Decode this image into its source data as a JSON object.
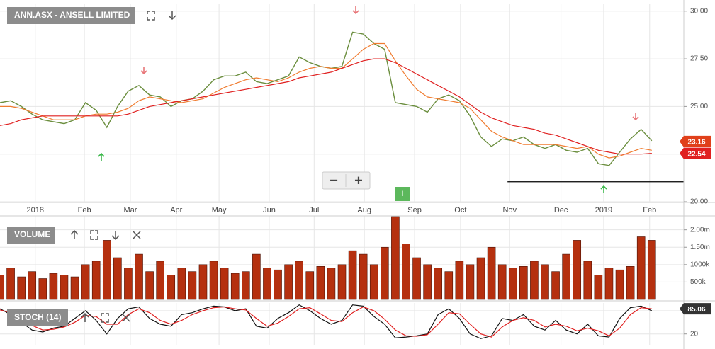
{
  "chart_data": [
    {
      "type": "line",
      "title": "ANN.ASX - ANSELL LIMITED",
      "x": [
        0,
        1,
        2,
        3,
        4,
        5,
        6,
        7,
        8,
        9,
        10,
        11,
        12,
        13,
        14,
        15,
        16,
        17,
        18,
        19,
        20,
        21,
        22,
        23,
        24,
        25,
        26,
        27,
        28,
        29,
        30,
        31,
        32,
        33,
        34,
        35,
        36,
        37,
        38,
        39,
        40,
        41,
        42,
        43,
        44,
        45,
        46,
        47,
        48,
        49,
        50,
        51,
        52,
        53,
        54,
        55,
        56,
        57,
        58,
        59,
        60,
        61
      ],
      "series": [
        {
          "color": "#6b8e3e",
          "values": [
            25.2,
            25.3,
            25.0,
            24.6,
            24.3,
            24.2,
            24.1,
            24.3,
            25.2,
            24.8,
            23.9,
            25.0,
            25.8,
            26.1,
            25.6,
            25.5,
            25.0,
            25.3,
            25.4,
            25.8,
            26.4,
            26.6,
            26.6,
            26.8,
            26.3,
            26.2,
            26.4,
            26.6,
            27.6,
            27.3,
            27.1,
            27.0,
            27.1,
            28.9,
            28.8,
            28.3,
            28.0,
            25.2,
            25.1,
            25.0,
            24.7,
            25.4,
            25.6,
            25.3,
            24.5,
            23.4,
            22.9,
            23.3,
            23.2,
            23.4,
            23.0,
            22.8,
            23.0,
            22.7,
            22.6,
            22.8,
            22.0,
            21.9,
            22.6,
            23.3,
            23.8,
            23.2
          ]
        },
        {
          "color": "#f07c30",
          "values": [
            25.0,
            25.0,
            24.9,
            24.7,
            24.5,
            24.3,
            24.3,
            24.3,
            24.5,
            24.6,
            24.6,
            24.7,
            24.9,
            25.3,
            25.5,
            25.4,
            25.3,
            25.2,
            25.3,
            25.4,
            25.7,
            26.0,
            26.2,
            26.4,
            26.5,
            26.4,
            26.3,
            26.5,
            26.8,
            27.0,
            27.1,
            27.0,
            27.0,
            27.5,
            28.0,
            28.3,
            28.3,
            27.4,
            26.6,
            25.9,
            25.5,
            25.4,
            25.3,
            25.2,
            24.9,
            24.3,
            23.7,
            23.4,
            23.2,
            23.0,
            23.0,
            23.0,
            23.0,
            22.9,
            22.8,
            22.9,
            22.5,
            22.3,
            22.4,
            22.6,
            22.8,
            22.7
          ]
        },
        {
          "color": "#e02020",
          "values": [
            24.0,
            24.1,
            24.3,
            24.4,
            24.5,
            24.5,
            24.5,
            24.5,
            24.5,
            24.5,
            24.5,
            24.5,
            24.6,
            24.8,
            25.0,
            25.1,
            25.2,
            25.3,
            25.4,
            25.5,
            25.6,
            25.7,
            25.8,
            25.9,
            26.0,
            26.1,
            26.2,
            26.3,
            26.5,
            26.6,
            26.7,
            26.8,
            27.0,
            27.2,
            27.4,
            27.5,
            27.5,
            27.3,
            27.0,
            26.7,
            26.4,
            26.1,
            25.8,
            25.5,
            25.1,
            24.7,
            24.4,
            24.2,
            24.0,
            23.9,
            23.8,
            23.6,
            23.5,
            23.3,
            23.1,
            22.9,
            22.7,
            22.6,
            22.5,
            22.5,
            22.5,
            22.54
          ]
        }
      ],
      "xlim": [
        0,
        64
      ],
      "xticks": [
        {
          "value": 3.3,
          "label": "2018"
        },
        {
          "value": 7.9,
          "label": "Feb"
        },
        {
          "value": 12.2,
          "label": "Mar"
        },
        {
          "value": 16.5,
          "label": "Apr"
        },
        {
          "value": 20.5,
          "label": "May"
        },
        {
          "value": 25.2,
          "label": "Jun"
        },
        {
          "value": 29.4,
          "label": "Jul"
        },
        {
          "value": 34.1,
          "label": "Aug"
        },
        {
          "value": 38.8,
          "label": "Sep"
        },
        {
          "value": 43.1,
          "label": "Oct"
        },
        {
          "value": 47.7,
          "label": "Nov"
        },
        {
          "value": 52.5,
          "label": "Dec"
        },
        {
          "value": 56.5,
          "label": "2019"
        },
        {
          "value": 60.8,
          "label": "Feb"
        }
      ],
      "ylim": [
        20,
        30.4
      ],
      "yticks": [
        {
          "value": 20,
          "label": "20.00"
        },
        {
          "value": 22.5,
          "label": "22.50"
        },
        {
          "value": 25,
          "label": "25.00"
        },
        {
          "value": 27.5,
          "label": "27.50"
        },
        {
          "value": 30,
          "label": "30.00"
        }
      ],
      "grid": true,
      "tags": [
        {
          "value": 22.54,
          "color": "#e02020"
        },
        {
          "value": 23.16,
          "color": "#e0401a"
        }
      ],
      "tag_labels": [
        "22.54",
        "23.16"
      ],
      "support_line": {
        "y": 21.05,
        "x": [
          47.5,
          64
        ]
      }
    },
    {
      "type": "bar",
      "title": "VOLUME",
      "color": "#b5300f",
      "x": [
        0,
        1,
        2,
        3,
        4,
        5,
        6,
        7,
        8,
        9,
        10,
        11,
        12,
        13,
        14,
        15,
        16,
        17,
        18,
        19,
        20,
        21,
        22,
        23,
        24,
        25,
        26,
        27,
        28,
        29,
        30,
        31,
        32,
        33,
        34,
        35,
        36,
        37,
        38,
        39,
        40,
        41,
        42,
        43,
        44,
        45,
        46,
        47,
        48,
        49,
        50,
        51,
        52,
        53,
        54,
        55,
        56,
        57,
        58,
        59,
        60,
        61
      ],
      "values": [
        700000,
        900000,
        650000,
        800000,
        600000,
        750000,
        700000,
        650000,
        1000000,
        1100000,
        1700000,
        1200000,
        900000,
        1300000,
        800000,
        1100000,
        700000,
        900000,
        800000,
        1000000,
        1100000,
        900000,
        750000,
        800000,
        1300000,
        900000,
        850000,
        1000000,
        1100000,
        800000,
        950000,
        900000,
        1000000,
        1400000,
        1300000,
        1000000,
        1500000,
        2380000,
        1600000,
        1200000,
        1000000,
        900000,
        800000,
        1100000,
        1000000,
        1200000,
        1500000,
        1000000,
        900000,
        950000,
        1100000,
        1000000,
        800000,
        1300000,
        1700000,
        1100000,
        700000,
        900000,
        850000,
        950000,
        1800000,
        1700000
      ],
      "xlim": [
        0,
        64
      ],
      "ylim": [
        0,
        2400000
      ],
      "yticks": [
        {
          "value": 500000,
          "label": "500k"
        },
        {
          "value": 1000000,
          "label": "1000k"
        },
        {
          "value": 1500000,
          "label": "1.50m"
        },
        {
          "value": 2000000,
          "label": "2.00m"
        }
      ]
    },
    {
      "type": "line",
      "title": "STOCH (14)",
      "x": [
        0,
        1,
        2,
        3,
        4,
        5,
        6,
        7,
        8,
        9,
        10,
        11,
        12,
        13,
        14,
        15,
        16,
        17,
        18,
        19,
        20,
        21,
        22,
        23,
        24,
        25,
        26,
        27,
        28,
        29,
        30,
        31,
        32,
        33,
        34,
        35,
        36,
        37,
        38,
        39,
        40,
        41,
        42,
        43,
        44,
        45,
        46,
        47,
        48,
        49,
        50,
        51,
        52,
        53,
        54,
        55,
        56,
        57,
        58,
        59,
        60,
        61
      ],
      "series": [
        {
          "color": "#111111",
          "values": [
            85,
            70,
            50,
            30,
            25,
            35,
            40,
            60,
            80,
            55,
            20,
            60,
            85,
            90,
            60,
            45,
            40,
            70,
            75,
            85,
            92,
            90,
            80,
            85,
            40,
            35,
            60,
            75,
            95,
            80,
            60,
            45,
            55,
            95,
            92,
            65,
            45,
            10,
            12,
            15,
            20,
            70,
            85,
            60,
            20,
            8,
            15,
            60,
            55,
            70,
            40,
            30,
            55,
            30,
            20,
            45,
            15,
            12,
            60,
            88,
            92,
            80
          ]
        },
        {
          "color": "#e02020",
          "values": [
            82,
            75,
            60,
            42,
            30,
            32,
            38,
            50,
            68,
            65,
            45,
            45,
            70,
            85,
            75,
            55,
            45,
            55,
            70,
            80,
            88,
            90,
            85,
            82,
            60,
            40,
            48,
            65,
            85,
            88,
            72,
            55,
            52,
            75,
            90,
            80,
            58,
            30,
            15,
            14,
            18,
            45,
            75,
            72,
            45,
            20,
            12,
            38,
            55,
            62,
            55,
            38,
            45,
            40,
            28,
            35,
            28,
            15,
            35,
            70,
            88,
            85.06
          ]
        }
      ],
      "xlim": [
        0,
        64
      ],
      "ylim": [
        -8,
        100
      ],
      "yticks": [
        20,
        80
      ],
      "tags": [
        {
          "value": 85.06,
          "color": "#333333"
        }
      ],
      "tag_labels": [
        "85.06"
      ]
    }
  ],
  "ui": {
    "zoom_out": "−",
    "zoom_in": "+",
    "event_badge": "I"
  }
}
